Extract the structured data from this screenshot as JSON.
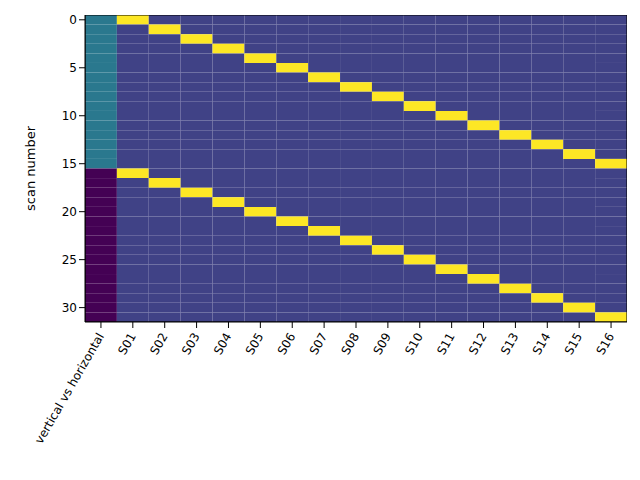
{
  "chart_data": {
    "type": "heatmap",
    "categories": [
      "vertical vs horizontal",
      "S01",
      "S02",
      "S03",
      "S04",
      "S05",
      "S06",
      "S07",
      "S08",
      "S09",
      "S10",
      "S11",
      "S12",
      "S13",
      "S14",
      "S15",
      "S16"
    ],
    "y": [
      0,
      1,
      2,
      3,
      4,
      5,
      6,
      7,
      8,
      9,
      10,
      11,
      12,
      13,
      14,
      15,
      16,
      17,
      18,
      19,
      20,
      21,
      22,
      23,
      24,
      25,
      26,
      27,
      28,
      29,
      30,
      31
    ],
    "ylabel": "scan number",
    "xlim": [
      -0.5,
      16.5
    ],
    "ylim": [
      31.5,
      -0.5
    ],
    "yticks": [
      0,
      5,
      10,
      15,
      20,
      25,
      30
    ],
    "color": "viridis",
    "color_range": [
      -0.1768,
      0.7071
    ],
    "cells": [
      [
        0.1768,
        0.7071,
        0,
        0,
        0,
        0,
        0,
        0,
        0,
        0,
        0,
        0,
        0,
        0,
        0,
        0,
        0
      ],
      [
        0.1768,
        0,
        0.7071,
        0,
        0,
        0,
        0,
        0,
        0,
        0,
        0,
        0,
        0,
        0,
        0,
        0,
        0
      ],
      [
        0.1768,
        0,
        0,
        0.7071,
        0,
        0,
        0,
        0,
        0,
        0,
        0,
        0,
        0,
        0,
        0,
        0,
        0
      ],
      [
        0.1768,
        0,
        0,
        0,
        0.7071,
        0,
        0,
        0,
        0,
        0,
        0,
        0,
        0,
        0,
        0,
        0,
        0
      ],
      [
        0.1768,
        0,
        0,
        0,
        0,
        0.7071,
        0,
        0,
        0,
        0,
        0,
        0,
        0,
        0,
        0,
        0,
        0
      ],
      [
        0.1768,
        0,
        0,
        0,
        0,
        0,
        0.7071,
        0,
        0,
        0,
        0,
        0,
        0,
        0,
        0,
        0,
        0
      ],
      [
        0.1768,
        0,
        0,
        0,
        0,
        0,
        0,
        0.7071,
        0,
        0,
        0,
        0,
        0,
        0,
        0,
        0,
        0
      ],
      [
        0.1768,
        0,
        0,
        0,
        0,
        0,
        0,
        0,
        0.7071,
        0,
        0,
        0,
        0,
        0,
        0,
        0,
        0
      ],
      [
        0.1768,
        0,
        0,
        0,
        0,
        0,
        0,
        0,
        0,
        0.7071,
        0,
        0,
        0,
        0,
        0,
        0,
        0
      ],
      [
        0.1768,
        0,
        0,
        0,
        0,
        0,
        0,
        0,
        0,
        0,
        0.7071,
        0,
        0,
        0,
        0,
        0,
        0
      ],
      [
        0.1768,
        0,
        0,
        0,
        0,
        0,
        0,
        0,
        0,
        0,
        0,
        0.7071,
        0,
        0,
        0,
        0,
        0
      ],
      [
        0.1768,
        0,
        0,
        0,
        0,
        0,
        0,
        0,
        0,
        0,
        0,
        0,
        0.7071,
        0,
        0,
        0,
        0
      ],
      [
        0.1768,
        0,
        0,
        0,
        0,
        0,
        0,
        0,
        0,
        0,
        0,
        0,
        0,
        0.7071,
        0,
        0,
        0
      ],
      [
        0.1768,
        0,
        0,
        0,
        0,
        0,
        0,
        0,
        0,
        0,
        0,
        0,
        0,
        0,
        0.7071,
        0,
        0
      ],
      [
        0.1768,
        0,
        0,
        0,
        0,
        0,
        0,
        0,
        0,
        0,
        0,
        0,
        0,
        0,
        0,
        0.7071,
        0
      ],
      [
        0.1768,
        0,
        0,
        0,
        0,
        0,
        0,
        0,
        0,
        0,
        0,
        0,
        0,
        0,
        0,
        0,
        0.7071
      ],
      [
        -0.1768,
        0.7071,
        0,
        0,
        0,
        0,
        0,
        0,
        0,
        0,
        0,
        0,
        0,
        0,
        0,
        0,
        0
      ],
      [
        -0.1768,
        0,
        0.7071,
        0,
        0,
        0,
        0,
        0,
        0,
        0,
        0,
        0,
        0,
        0,
        0,
        0,
        0
      ],
      [
        -0.1768,
        0,
        0,
        0.7071,
        0,
        0,
        0,
        0,
        0,
        0,
        0,
        0,
        0,
        0,
        0,
        0,
        0
      ],
      [
        -0.1768,
        0,
        0,
        0,
        0.7071,
        0,
        0,
        0,
        0,
        0,
        0,
        0,
        0,
        0,
        0,
        0,
        0
      ],
      [
        -0.1768,
        0,
        0,
        0,
        0,
        0.7071,
        0,
        0,
        0,
        0,
        0,
        0,
        0,
        0,
        0,
        0,
        0
      ],
      [
        -0.1768,
        0,
        0,
        0,
        0,
        0,
        0.7071,
        0,
        0,
        0,
        0,
        0,
        0,
        0,
        0,
        0,
        0
      ],
      [
        -0.1768,
        0,
        0,
        0,
        0,
        0,
        0,
        0.7071,
        0,
        0,
        0,
        0,
        0,
        0,
        0,
        0,
        0
      ],
      [
        -0.1768,
        0,
        0,
        0,
        0,
        0,
        0,
        0,
        0.7071,
        0,
        0,
        0,
        0,
        0,
        0,
        0,
        0
      ],
      [
        -0.1768,
        0,
        0,
        0,
        0,
        0,
        0,
        0,
        0,
        0.7071,
        0,
        0,
        0,
        0,
        0,
        0,
        0
      ],
      [
        -0.1768,
        0,
        0,
        0,
        0,
        0,
        0,
        0,
        0,
        0,
        0.7071,
        0,
        0,
        0,
        0,
        0,
        0
      ],
      [
        -0.1768,
        0,
        0,
        0,
        0,
        0,
        0,
        0,
        0,
        0,
        0,
        0.7071,
        0,
        0,
        0,
        0,
        0
      ],
      [
        -0.1768,
        0,
        0,
        0,
        0,
        0,
        0,
        0,
        0,
        0,
        0,
        0,
        0.7071,
        0,
        0,
        0,
        0
      ],
      [
        -0.1768,
        0,
        0,
        0,
        0,
        0,
        0,
        0,
        0,
        0,
        0,
        0,
        0,
        0.7071,
        0,
        0,
        0
      ],
      [
        -0.1768,
        0,
        0,
        0,
        0,
        0,
        0,
        0,
        0,
        0,
        0,
        0,
        0,
        0,
        0.7071,
        0,
        0
      ],
      [
        -0.1768,
        0,
        0,
        0,
        0,
        0,
        0,
        0,
        0,
        0,
        0,
        0,
        0,
        0,
        0,
        0.7071,
        0
      ],
      [
        -0.1768,
        0,
        0,
        0,
        0,
        0,
        0,
        0,
        0,
        0,
        0,
        0,
        0,
        0,
        0,
        0,
        0.7071
      ]
    ]
  }
}
